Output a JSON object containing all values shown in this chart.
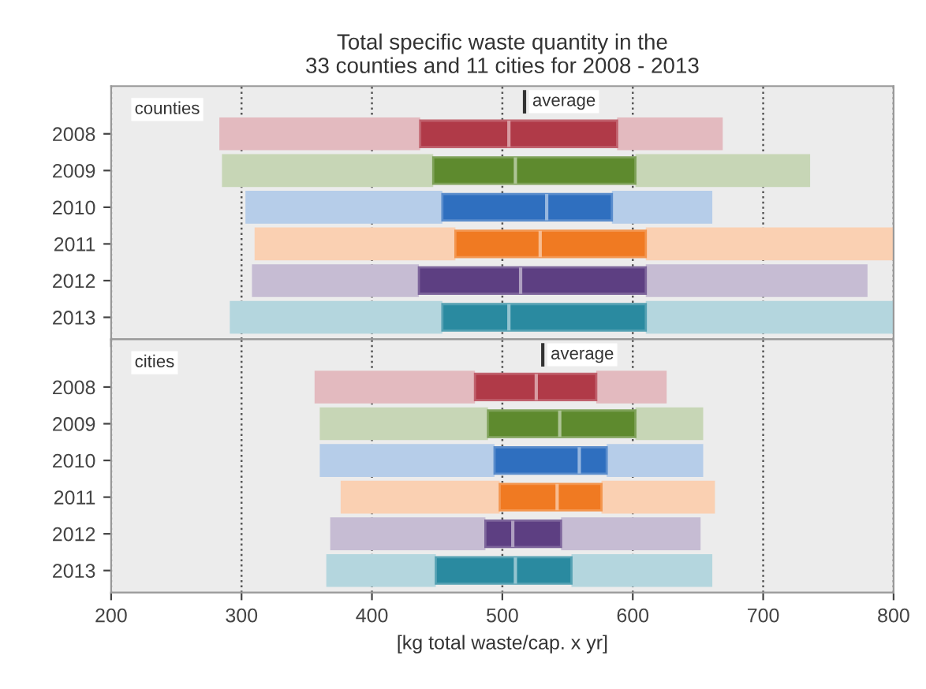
{
  "chart_data": [
    {
      "type": "box",
      "orientation": "horizontal",
      "title": "Total specific waste quantity in the\n33 counties and 11 cities for 2008 - 2013",
      "annotations": [
        "counties"
      ],
      "categories": [
        "2008",
        "2009",
        "2010",
        "2011",
        "2012",
        "2013"
      ],
      "colors": [
        "#b03a48",
        "#5e8a2e",
        "#2f6fbf",
        "#f07a22",
        "#5d3f82",
        "#2a8aa0"
      ],
      "xlim": [
        200,
        800
      ],
      "xticks": [
        200,
        300,
        400,
        500,
        600,
        700,
        800
      ],
      "grid": "x",
      "tick_labels": "y",
      "ref_lines": [
        {
          "axis": "x",
          "value": 517,
          "label": "average"
        }
      ],
      "boxes": [
        {
          "low": 283,
          "q1": 437,
          "median": 505,
          "q3": 588,
          "high": 669
        },
        {
          "low": 285,
          "q1": 447,
          "median": 510,
          "q3": 602,
          "high": 736
        },
        {
          "low": 303,
          "q1": 454,
          "median": 534,
          "q3": 584,
          "high": 661
        },
        {
          "low": 310,
          "q1": 464,
          "median": 529,
          "q3": 610,
          "high": 800
        },
        {
          "low": 308,
          "q1": 436,
          "median": 514,
          "q3": 610,
          "high": 780
        },
        {
          "low": 291,
          "q1": 454,
          "median": 505,
          "q3": 610,
          "high": 800
        }
      ]
    },
    {
      "type": "box",
      "orientation": "horizontal",
      "xlabel": "[kg total waste/cap. x yr]",
      "annotations": [
        "cities"
      ],
      "categories": [
        "2008",
        "2009",
        "2010",
        "2011",
        "2012",
        "2013"
      ],
      "colors": [
        "#b03a48",
        "#5e8a2e",
        "#2f6fbf",
        "#f07a22",
        "#5d3f82",
        "#2a8aa0"
      ],
      "xlim": [
        200,
        800
      ],
      "xticks": [
        200,
        300,
        400,
        500,
        600,
        700,
        800
      ],
      "grid": "x",
      "ref_lines": [
        {
          "axis": "x",
          "value": 531,
          "label": "average"
        }
      ],
      "boxes": [
        {
          "low": 356,
          "q1": 479,
          "median": 526,
          "q3": 572,
          "high": 626
        },
        {
          "low": 360,
          "q1": 489,
          "median": 544,
          "q3": 602,
          "high": 654
        },
        {
          "low": 360,
          "q1": 494,
          "median": 559,
          "q3": 580,
          "high": 654
        },
        {
          "low": 376,
          "q1": 498,
          "median": 542,
          "q3": 576,
          "high": 663
        },
        {
          "low": 368,
          "q1": 487,
          "median": 508,
          "q3": 545,
          "high": 652
        },
        {
          "low": 365,
          "q1": 449,
          "median": 510,
          "q3": 553,
          "high": 661
        }
      ]
    }
  ]
}
